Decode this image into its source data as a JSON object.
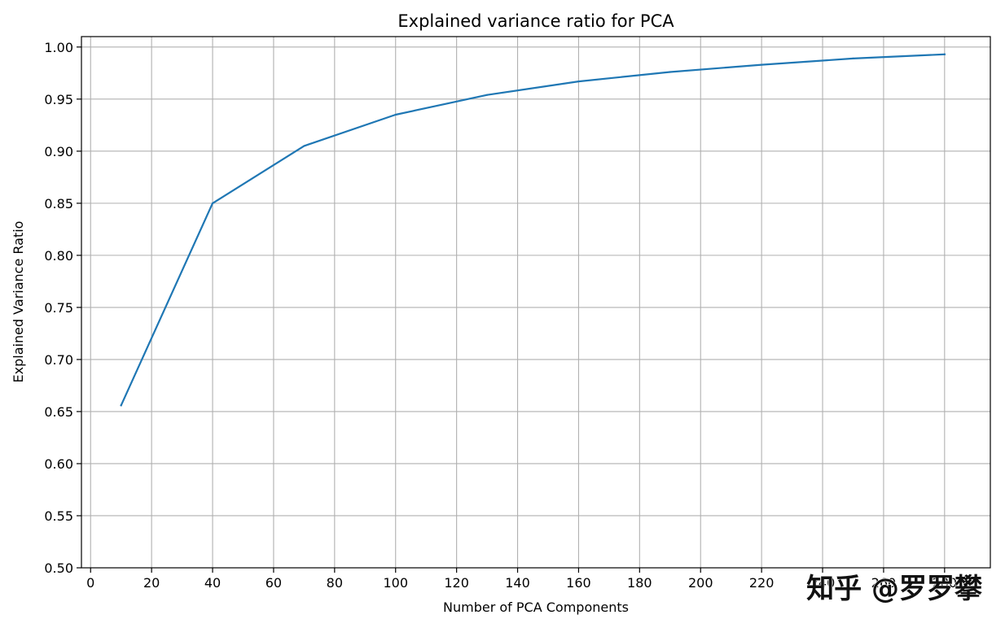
{
  "chart_data": {
    "type": "line",
    "title": "Explained variance ratio for PCA",
    "xlabel": "Number of PCA Components",
    "ylabel": "Explained Variance Ratio",
    "x": [
      10,
      40,
      70,
      100,
      130,
      160,
      190,
      220,
      250,
      280
    ],
    "series": [
      {
        "values": [
          0.656,
          0.85,
          0.905,
          0.935,
          0.954,
          0.967,
          0.976,
          0.983,
          0.989,
          0.993
        ],
        "color": "#1f77b4"
      }
    ],
    "xlim": [
      -3,
      295
    ],
    "ylim": [
      0.5,
      1.01
    ],
    "xticks": [
      0,
      20,
      40,
      60,
      80,
      100,
      120,
      140,
      160,
      180,
      200,
      220,
      240,
      260,
      280
    ],
    "xtick_labels": [
      "0",
      "20",
      "40",
      "60",
      "80",
      "100",
      "120",
      "140",
      "160",
      "180",
      "200",
      "220",
      "240",
      "260",
      "280"
    ],
    "yticks": [
      0.5,
      0.55,
      0.6,
      0.65,
      0.7,
      0.75,
      0.8,
      0.85,
      0.9,
      0.95,
      1.0
    ],
    "ytick_labels": [
      "0.50",
      "0.55",
      "0.60",
      "0.65",
      "0.70",
      "0.75",
      "0.80",
      "0.85",
      "0.90",
      "0.95",
      "1.00"
    ],
    "grid": true,
    "legend": "none"
  },
  "watermark": "知乎 @罗罗攀"
}
